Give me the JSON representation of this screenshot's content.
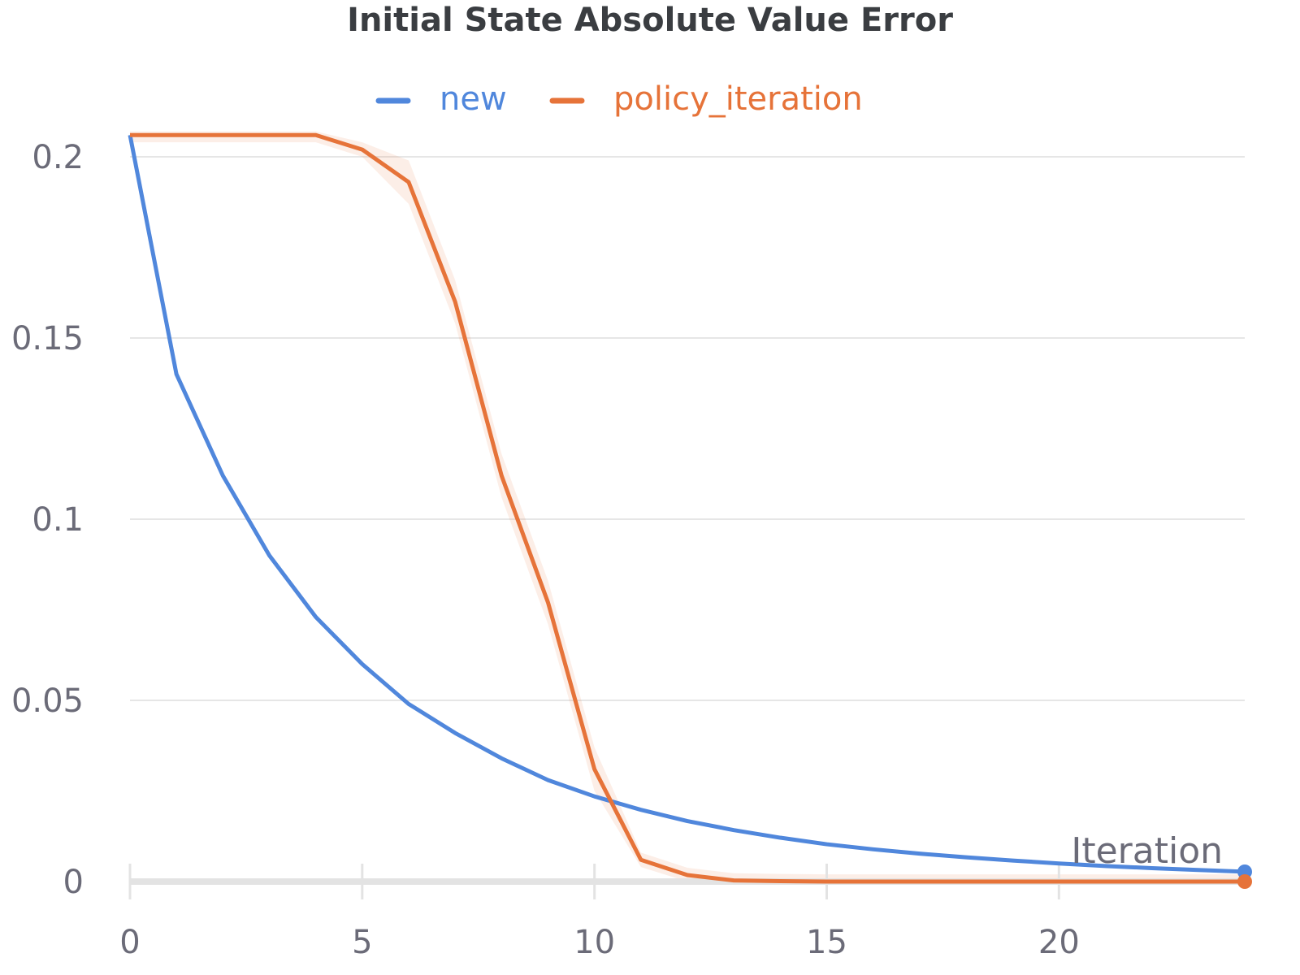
{
  "chart_data": {
    "type": "line",
    "title": "Initial State Absolute Value Error",
    "xlabel": "Iteration",
    "ylabel": "",
    "xlim": [
      0,
      24
    ],
    "ylim": [
      0,
      0.2
    ],
    "x_ticks": [
      "0",
      "5",
      "10",
      "15",
      "20"
    ],
    "y_ticks": [
      "0",
      "0.05",
      "0.1",
      "0.15",
      "0.2"
    ],
    "legend_position": "top-center",
    "grid": true,
    "x": [
      0,
      1,
      2,
      3,
      4,
      5,
      6,
      7,
      8,
      9,
      10,
      11,
      12,
      13,
      14,
      15,
      16,
      17,
      18,
      19,
      20,
      21,
      22,
      23,
      24
    ],
    "series": [
      {
        "name": "new",
        "color": "#5087dc",
        "values": [
          0.206,
          0.14,
          0.112,
          0.09,
          0.073,
          0.06,
          0.049,
          0.041,
          0.034,
          0.028,
          0.0235,
          0.0198,
          0.0167,
          0.0142,
          0.0121,
          0.0103,
          0.0089,
          0.0077,
          0.0067,
          0.0058,
          0.005,
          0.0043,
          0.0037,
          0.0032,
          0.0027
        ]
      },
      {
        "name": "policy_iteration",
        "color": "#e67339",
        "values": [
          0.206,
          0.206,
          0.206,
          0.206,
          0.206,
          0.202,
          0.193,
          0.16,
          0.112,
          0.077,
          0.031,
          0.006,
          0.0018,
          0.0003,
          0.0001,
          0,
          0,
          0,
          0,
          0,
          0,
          0,
          0,
          0,
          0
        ]
      }
    ]
  }
}
